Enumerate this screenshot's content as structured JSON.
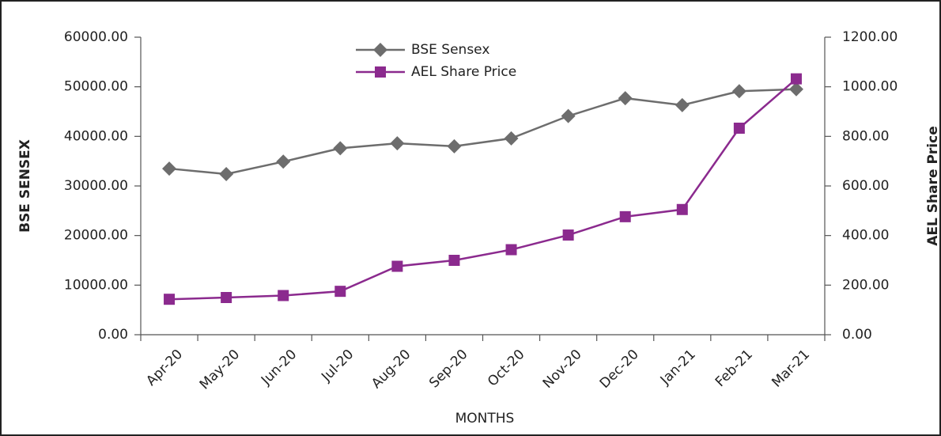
{
  "chart_data": {
    "type": "line",
    "x_label": "MONTHS",
    "y_label": "BSE SENSEX",
    "y2_label": "AEL Share Price",
    "categories": [
      "Apr-20",
      "May-20",
      "Jun-20",
      "Jul-20",
      "Aug-20",
      "Sep-20",
      "Oct-20",
      "Nov-20",
      "Dec-20",
      "Jan-21",
      "Feb-21",
      "Mar-21"
    ],
    "series": [
      {
        "name": "BSE Sensex",
        "color": "#6d6d6d",
        "marker": "diamond",
        "axis": "y",
        "values": [
          33500,
          32400,
          34900,
          37600,
          38600,
          38000,
          39600,
          44100,
          47700,
          46300,
          49100,
          49500
        ]
      },
      {
        "name": "AEL Share Price",
        "color": "#8b2a8e",
        "marker": "square",
        "axis": "y2",
        "values": [
          143,
          150,
          158,
          175,
          276,
          300,
          343,
          402,
          476,
          505,
          833,
          1032
        ]
      }
    ],
    "ylim": [
      0,
      60000
    ],
    "yticks": [
      {
        "value": 0,
        "label": "0.00"
      },
      {
        "value": 10000,
        "label": "10000.00"
      },
      {
        "value": 20000,
        "label": "20000.00"
      },
      {
        "value": 30000,
        "label": "30000.00"
      },
      {
        "value": 40000,
        "label": "40000.00"
      },
      {
        "value": 50000,
        "label": "50000.00"
      },
      {
        "value": 60000,
        "label": "60000.00"
      }
    ],
    "y2lim": [
      0,
      1200
    ],
    "y2ticks": [
      {
        "value": 0,
        "label": "0.00"
      },
      {
        "value": 200,
        "label": "200.00"
      },
      {
        "value": 400,
        "label": "400.00"
      },
      {
        "value": 600,
        "label": "600.00"
      },
      {
        "value": 800,
        "label": "800.00"
      },
      {
        "value": 1000,
        "label": "1000.00"
      },
      {
        "value": 1200,
        "label": "1200.00"
      }
    ],
    "legend": "top"
  }
}
